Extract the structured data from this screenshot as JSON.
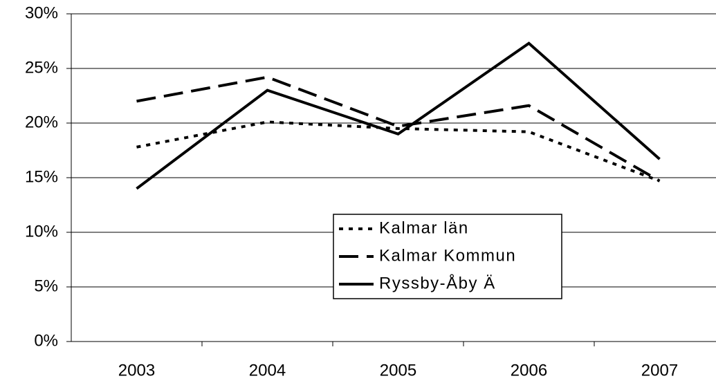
{
  "chart_data": {
    "type": "line",
    "categories": [
      "2003",
      "2004",
      "2005",
      "2006",
      "2007"
    ],
    "series": [
      {
        "name": "Kalmar län",
        "color": "#000000",
        "dash": "dotted",
        "values": [
          17.8,
          20.1,
          19.5,
          19.2,
          14.7
        ]
      },
      {
        "name": "Kalmar Kommun",
        "color": "#000000",
        "dash": "dashed",
        "values": [
          22.0,
          24.2,
          19.7,
          21.6,
          14.7
        ]
      },
      {
        "name": "Ryssby-Åby Ä",
        "color": "#000000",
        "dash": "solid",
        "values": [
          14.0,
          23.0,
          19.0,
          27.3,
          16.7
        ]
      }
    ],
    "ylim": [
      0,
      30
    ],
    "yticks": [
      {
        "value": 0,
        "label": "0%"
      },
      {
        "value": 5,
        "label": "5%"
      },
      {
        "value": 10,
        "label": "10%"
      },
      {
        "value": 15,
        "label": "15%"
      },
      {
        "value": 20,
        "label": "20%"
      },
      {
        "value": 25,
        "label": "25%"
      },
      {
        "value": 30,
        "label": "30%"
      }
    ],
    "grid": true,
    "legend": "center"
  }
}
